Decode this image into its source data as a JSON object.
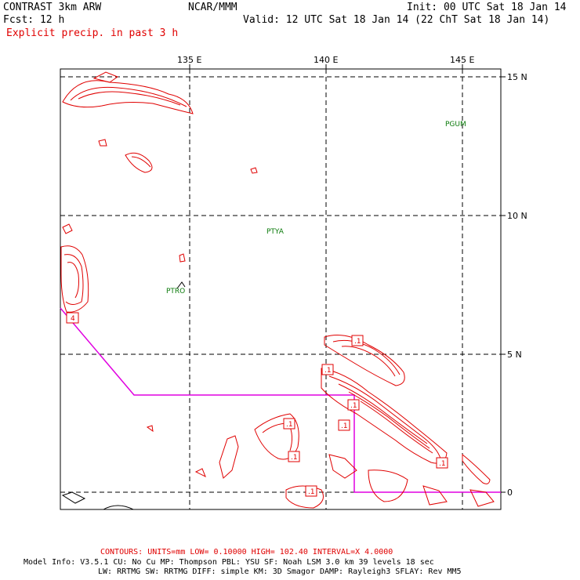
{
  "header": {
    "model": "CONTRAST  3km ARW",
    "fcst": "Fcst:   12 h",
    "org": "NCAR/MMM",
    "init": "Init: 00 UTC Sat 18 Jan 14",
    "valid": "Valid: 12 UTC Sat 18 Jan 14 (22 ChT Sat 18 Jan 14)",
    "field": "Explicit precip. in past 3 h"
  },
  "axes": {
    "lon_labels": [
      "135 E",
      "140 E",
      "145 E"
    ],
    "lat_labels": [
      "15 N",
      "10 N",
      "5 N",
      "0"
    ]
  },
  "stations": [
    "PGUM",
    "PTYA",
    "PTRO"
  ],
  "contour_labels": [
    "4",
    ".1",
    ".1",
    ".1",
    ".1",
    ".1",
    ".1",
    ".1",
    ".1"
  ],
  "footer": {
    "contours": "CONTOURS:  UNITS=mm  LOW= 0.10000      HIGH=  102.40      INTERVAL=X  4.0000",
    "info1": "Model Info: V3.5.1    CU: No Cu    MP: Thompson    PBL: YSU      SF: Noah LSM     3.0 km   39 levels    18 sec",
    "info2": "LW: RRTMG    SW: RRTMG   DIFF: simple KM: 3D Smagor DAMP: Rayleigh3   SFLAY: Rev MM5"
  },
  "colors": {
    "precip": "#e00000",
    "boundary": "#e000e0",
    "station": "#0a7a0a"
  }
}
